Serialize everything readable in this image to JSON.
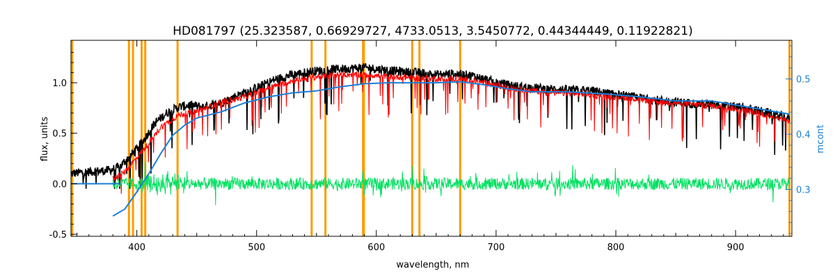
{
  "chart_data": {
    "type": "line",
    "title": "HD081797    (25.323587, 0.66929727, 4733.0513, 3.5450772, 0.44344449, 0.11922821)",
    "xlabel": "wavelength, nm",
    "ylabel": "flux, units",
    "ylabel_right": "mcont",
    "xlim": [
      345,
      947
    ],
    "ylim": [
      -0.52,
      1.42
    ],
    "ylim_right": [
      0.215,
      0.57
    ],
    "x_ticks": [
      400,
      500,
      600,
      700,
      800,
      900
    ],
    "y_ticks": [
      -0.5,
      0.0,
      0.5,
      1.0
    ],
    "y_tick_labels": [
      "-0.5",
      "0.0",
      "0.5",
      "1.0"
    ],
    "y_right_ticks": [
      0.3,
      0.4,
      0.5
    ],
    "y_right_tick_labels": [
      "0.3",
      "0.4",
      "0.5"
    ],
    "vertical_lines_nm": [
      346,
      393.4,
      396.8,
      404,
      407,
      434,
      546,
      557.5,
      588.9,
      589.6,
      630,
      636,
      670,
      945
    ],
    "series": [
      {
        "color": "#000000",
        "x": [
          345,
          360,
          375,
          385,
          395,
          405,
          415,
          425,
          435,
          445,
          455,
          470,
          485,
          500,
          515,
          530,
          545,
          560,
          575,
          590,
          605,
          620,
          635,
          650,
          665,
          680,
          700,
          720,
          740,
          760,
          780,
          800,
          820,
          840,
          860,
          880,
          900,
          920,
          945
        ],
        "y": [
          0.1,
          0.12,
          0.13,
          0.16,
          0.28,
          0.42,
          0.6,
          0.7,
          0.76,
          0.78,
          0.76,
          0.8,
          0.88,
          0.95,
          1.03,
          1.08,
          1.11,
          1.13,
          1.14,
          1.15,
          1.13,
          1.11,
          1.1,
          1.08,
          1.09,
          1.07,
          1.0,
          0.96,
          0.94,
          0.93,
          0.92,
          0.88,
          0.85,
          0.82,
          0.8,
          0.78,
          0.76,
          0.72,
          0.65
        ]
      },
      {
        "color": "#ff0000",
        "x": [
          380,
          390,
          400,
          410,
          420,
          435,
          450,
          470,
          490,
          510,
          530,
          550,
          570,
          590,
          610,
          630,
          650,
          670,
          690,
          710,
          730,
          750,
          770,
          790,
          810,
          830,
          850,
          870,
          890,
          910,
          930,
          945
        ],
        "y": [
          0.05,
          0.12,
          0.26,
          0.4,
          0.56,
          0.68,
          0.72,
          0.8,
          0.86,
          0.95,
          1.02,
          1.06,
          1.08,
          1.08,
          1.06,
          1.05,
          1.04,
          1.04,
          1.0,
          0.95,
          0.92,
          0.9,
          0.89,
          0.87,
          0.85,
          0.82,
          0.8,
          0.78,
          0.76,
          0.72,
          0.67,
          0.62
        ]
      },
      {
        "color": "#1a7fd8",
        "x": [
          380,
          390,
          400,
          410,
          420,
          430,
          440,
          450,
          470,
          490,
          510,
          530,
          550,
          570,
          590,
          610,
          630,
          650,
          670,
          690,
          710,
          730,
          760,
          790,
          820,
          850,
          880,
          910,
          945
        ],
        "y": [
          -0.32,
          -0.25,
          -0.08,
          0.1,
          0.3,
          0.48,
          0.58,
          0.65,
          0.71,
          0.8,
          0.86,
          0.9,
          0.92,
          0.96,
          0.99,
          1.0,
          1.0,
          1.0,
          1.01,
          0.98,
          0.94,
          0.91,
          0.91,
          0.89,
          0.86,
          0.82,
          0.82,
          0.76,
          0.69
        ]
      },
      {
        "color": "#00e060",
        "x": [
          380,
          945
        ],
        "y": [
          0.0,
          0.0
        ]
      }
    ],
    "baseline_y": 0.0
  }
}
